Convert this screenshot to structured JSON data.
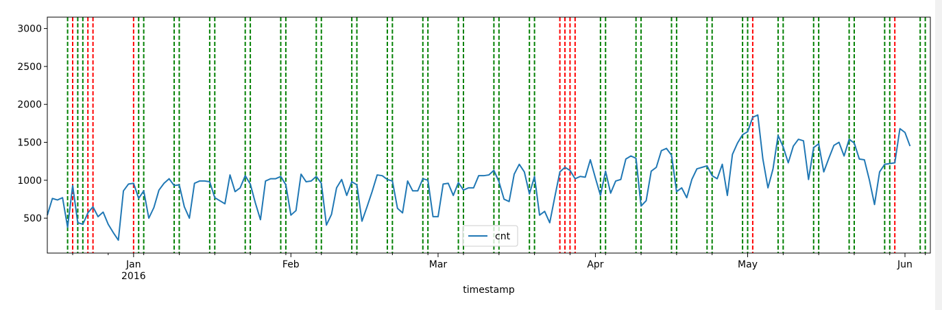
{
  "chart_data": {
    "type": "line",
    "xlabel": "timestamp",
    "ylabel": "",
    "x_range": [
      "2015-12-15",
      "2016-06-06"
    ],
    "ylim": [
      40,
      3150
    ],
    "y_ticks": [
      500,
      1000,
      1500,
      2000,
      2500,
      3000
    ],
    "x_ticks": [
      {
        "date": "2016-01-01",
        "label": "Jan",
        "sublabel": "2016"
      },
      {
        "date": "2016-02-01",
        "label": "Feb",
        "sublabel": ""
      },
      {
        "date": "2016-03-01",
        "label": "Mar",
        "sublabel": ""
      },
      {
        "date": "2016-04-01",
        "label": "Apr",
        "sublabel": ""
      },
      {
        "date": "2016-05-01",
        "label": "May",
        "sublabel": ""
      },
      {
        "date": "2016-06-01",
        "label": "Jun",
        "sublabel": ""
      }
    ],
    "legend": {
      "position": "lower center",
      "entries": [
        "cnt"
      ]
    },
    "series": [
      {
        "name": "cnt",
        "color": "#1f77b4",
        "start": "2015-12-15",
        "values": [
          540,
          760,
          740,
          770,
          380,
          930,
          440,
          420,
          570,
          650,
          520,
          580,
          420,
          310,
          210,
          860,
          950,
          960,
          760,
          860,
          500,
          640,
          870,
          960,
          1020,
          930,
          940,
          650,
          500,
          960,
          990,
          990,
          980,
          770,
          730,
          690,
          1070,
          850,
          900,
          1060,
          950,
          700,
          480,
          990,
          1020,
          1020,
          1050,
          940,
          540,
          600,
          1080,
          980,
          990,
          1050,
          960,
          410,
          550,
          900,
          1010,
          800,
          980,
          940,
          460,
          650,
          850,
          1070,
          1060,
          1010,
          990,
          630,
          570,
          990,
          860,
          860,
          1020,
          1000,
          520,
          520,
          950,
          960,
          800,
          970,
          870,
          900,
          900,
          1060,
          1060,
          1070,
          1130,
          980,
          750,
          720,
          1080,
          1210,
          1110,
          820,
          1050,
          540,
          590,
          440,
          780,
          1110,
          1170,
          1130,
          1020,
          1050,
          1040,
          1270,
          1030,
          800,
          1120,
          830,
          990,
          1010,
          1280,
          1320,
          1290,
          660,
          730,
          1120,
          1170,
          1390,
          1420,
          1330,
          850,
          900,
          770,
          1010,
          1150,
          1170,
          1190,
          1060,
          1020,
          1210,
          800,
          1340,
          1490,
          1600,
          1640,
          1830,
          1860,
          1280,
          900,
          1150,
          1590,
          1440,
          1230,
          1450,
          1540,
          1520,
          1010,
          1430,
          1480,
          1110,
          1290,
          1460,
          1500,
          1320,
          1540,
          1490,
          1280,
          1270,
          1000,
          680,
          1110,
          1210,
          1220,
          1230,
          1680,
          1630,
          1450
        ]
      }
    ],
    "vlines": [
      {
        "color": "red",
        "dates": [
          "2015-12-20",
          "2015-12-23",
          "2015-12-24",
          "2016-01-01",
          "2016-03-25",
          "2016-03-26",
          "2016-03-27",
          "2016-03-28",
          "2016-05-02",
          "2016-05-30"
        ]
      },
      {
        "color": "green",
        "dates": [
          "2015-12-19",
          "2015-12-21",
          "2015-12-22",
          "2016-01-02",
          "2016-01-03",
          "2016-01-09",
          "2016-01-10",
          "2016-01-16",
          "2016-01-17",
          "2016-01-23",
          "2016-01-24",
          "2016-01-30",
          "2016-01-31",
          "2016-02-06",
          "2016-02-07",
          "2016-02-13",
          "2016-02-14",
          "2016-02-20",
          "2016-02-21",
          "2016-02-27",
          "2016-02-28",
          "2016-03-05",
          "2016-03-06",
          "2016-03-12",
          "2016-03-13",
          "2016-03-19",
          "2016-03-20",
          "2016-04-02",
          "2016-04-03",
          "2016-04-09",
          "2016-04-10",
          "2016-04-16",
          "2016-04-17",
          "2016-04-23",
          "2016-04-24",
          "2016-04-30",
          "2016-05-01",
          "2016-05-07",
          "2016-05-08",
          "2016-05-14",
          "2016-05-15",
          "2016-05-21",
          "2016-05-22",
          "2016-05-28",
          "2016-05-29",
          "2016-06-04",
          "2016-06-05"
        ]
      }
    ]
  }
}
